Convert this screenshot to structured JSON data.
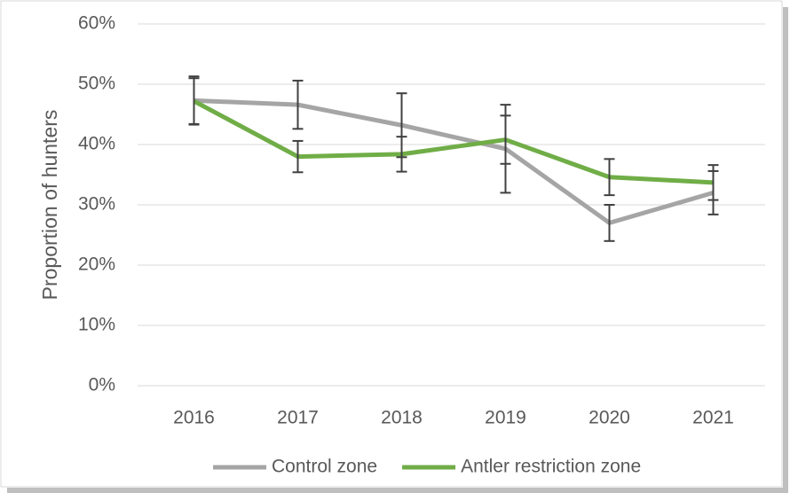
{
  "chart_data": {
    "type": "line",
    "ylabel": "Proportion of hunters",
    "categories": [
      "2016",
      "2017",
      "2018",
      "2019",
      "2020",
      "2021"
    ],
    "series": [
      {
        "name": "Control zone",
        "color": "#a5a5a5",
        "values": [
          47.3,
          46.6,
          43.2,
          39.3,
          27.0,
          32.0
        ],
        "errors": [
          4.0,
          4.0,
          5.3,
          7.3,
          3.0,
          3.6
        ]
      },
      {
        "name": "Antler restriction zone",
        "color": "#70ad47",
        "values": [
          47.2,
          38.0,
          38.4,
          40.8,
          34.6,
          33.7
        ],
        "errors": [
          3.8,
          2.6,
          2.9,
          4.0,
          3.0,
          2.9
        ]
      }
    ],
    "error_bar_color": "#404040",
    "ylim": [
      0,
      60
    ],
    "yticks": [
      {
        "value": 0,
        "label": "0%"
      },
      {
        "value": 10,
        "label": "10%"
      },
      {
        "value": 20,
        "label": "20%"
      },
      {
        "value": 30,
        "label": "30%"
      },
      {
        "value": 40,
        "label": "40%"
      },
      {
        "value": 50,
        "label": "50%"
      },
      {
        "value": 60,
        "label": "60%"
      }
    ],
    "grid": true,
    "legend": "bottom"
  }
}
